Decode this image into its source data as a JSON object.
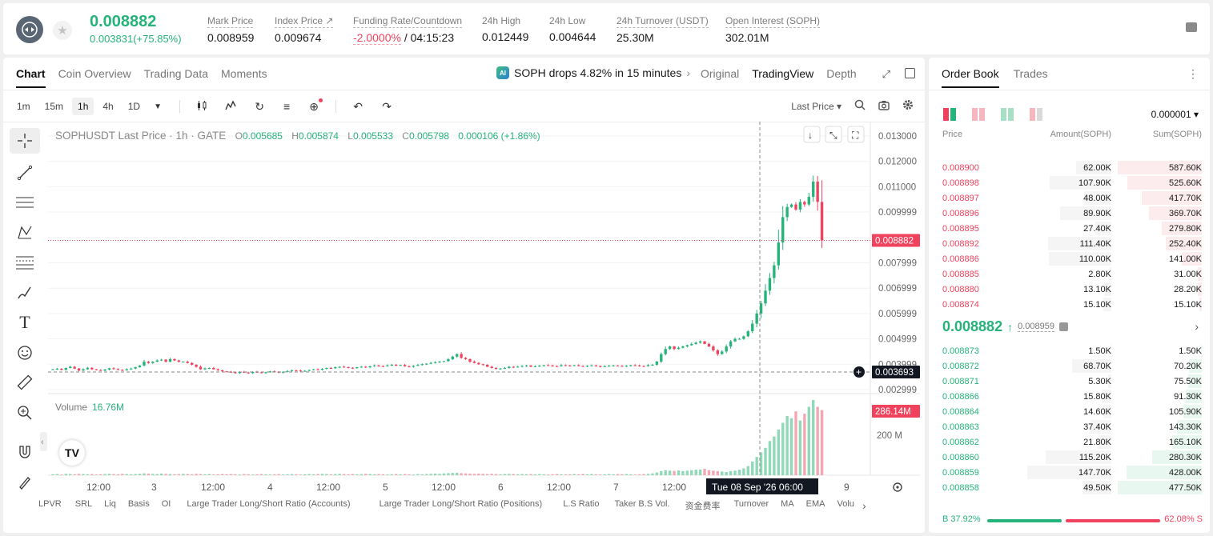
{
  "ticker": {
    "last_price": "0.008882",
    "change": "0.003831(+75.85%)",
    "stats": [
      {
        "label": "Mark Price",
        "value": "0.008959"
      },
      {
        "label": "Index Price ↗",
        "value": "0.009674"
      },
      {
        "label": "Funding Rate/Countdown",
        "value_neg": "-2.0000%",
        "value": " / 04:15:23"
      },
      {
        "label": "24h High",
        "value": "0.012449"
      },
      {
        "label": "24h Low",
        "value": "0.004644"
      },
      {
        "label": "24h Turnover (USDT)",
        "value": "25.30M"
      },
      {
        "label": "Open Interest (SOPH)",
        "value": "302.01M"
      }
    ]
  },
  "chart_tabs": [
    "Chart",
    "Coin Overview",
    "Trading Data",
    "Moments"
  ],
  "announcement": {
    "badge": "AI",
    "text": "SOPH drops 4.82% in 15 minutes",
    "chevron": "›"
  },
  "view_tabs": [
    "Original",
    "TradingView",
    "Depth"
  ],
  "timeframes": [
    "1m",
    "15m",
    "1h",
    "4h",
    "1D"
  ],
  "active_timeframe": "1h",
  "price_type": "Last Price ▾",
  "legend": {
    "title": "SOPHUSDT Last Price · 1h · GATE",
    "o_k": "O",
    "o": "0.005685",
    "h_k": "H",
    "h": "0.005874",
    "l_k": "L",
    "l": "0.005533",
    "c_k": "C",
    "c": "0.005798",
    "chg": "0.000106 (+1.86%)"
  },
  "volume_label": {
    "name": "Volume",
    "value": "16.76M"
  },
  "indicators": [
    "LPVR",
    "SRL",
    "Liq",
    "Basis",
    "OI",
    "Large Trader Long/Short Ratio (Accounts)",
    "Large Trader Long/Short Ratio (Positions)",
    "L.S Ratio",
    "Taker B.S Vol.",
    "资金费率",
    "Turnover",
    "MA",
    "EMA",
    "Volu"
  ],
  "chart_data": {
    "type": "candlestick",
    "symbol": "SOPHUSDT",
    "interval": "1h",
    "y_ticks": [
      "0.013000",
      "0.012000",
      "0.011000",
      "0.009999",
      "0.008999",
      "0.007999",
      "0.006999",
      "0.005999",
      "0.004999",
      "0.003999",
      "0.002999"
    ],
    "ylim": [
      0.002999,
      0.013
    ],
    "last_price_label": "0.008882",
    "crosshair_price_label": "0.003693",
    "crosshair_time_label": "Tue 08 Sep '26   06:00",
    "x_ticks": [
      "12:00",
      "3",
      "12:00",
      "4",
      "12:00",
      "5",
      "12:00",
      "6",
      "12:00",
      "7",
      "12:00",
      "8",
      "9"
    ],
    "volume_axis": [
      "286.14M",
      "200 M"
    ],
    "volume_last": 286.14,
    "volume_max": 330,
    "closes": [
      0.0038,
      0.00382,
      0.00378,
      0.00385,
      0.0039,
      0.00383,
      0.00375,
      0.0038,
      0.00386,
      0.0038,
      0.00377,
      0.00375,
      0.00379,
      0.00384,
      0.00381,
      0.00378,
      0.00376,
      0.0038,
      0.00383,
      0.00388,
      0.00395,
      0.0041,
      0.00405,
      0.0041,
      0.00415,
      0.00418,
      0.0041,
      0.0042,
      0.00415,
      0.0041,
      0.0041,
      0.00405,
      0.00398,
      0.0039,
      0.0038,
      0.00384,
      0.00385,
      0.0038,
      0.00376,
      0.00372,
      0.0037,
      0.00368,
      0.00365,
      0.0037,
      0.00367,
      0.00365,
      0.0037,
      0.00368,
      0.00366,
      0.00368,
      0.00372,
      0.0037,
      0.00367,
      0.0037,
      0.00373,
      0.00376,
      0.00375,
      0.00372,
      0.00374,
      0.00377,
      0.0038,
      0.00378,
      0.00382,
      0.00385,
      0.00384,
      0.00388,
      0.0039,
      0.00388,
      0.00386,
      0.00384,
      0.00388,
      0.0039,
      0.00388,
      0.00392,
      0.00395,
      0.00393,
      0.00392,
      0.00395,
      0.00398,
      0.00395,
      0.00397,
      0.00392,
      0.0039,
      0.00394,
      0.00397,
      0.004,
      0.00402,
      0.00405,
      0.00408,
      0.0041,
      0.00412,
      0.0042,
      0.0043,
      0.0044,
      0.00425,
      0.0042,
      0.0041,
      0.00405,
      0.004,
      0.00398,
      0.0039,
      0.00385,
      0.00382,
      0.00383,
      0.00385,
      0.0039,
      0.00388,
      0.0039,
      0.00393,
      0.00395,
      0.0039,
      0.00392,
      0.00394,
      0.00396,
      0.00395,
      0.00393,
      0.00392,
      0.00396,
      0.00395,
      0.00394,
      0.00396,
      0.00393,
      0.00392,
      0.00394,
      0.00395,
      0.00393,
      0.0039,
      0.00392,
      0.00394,
      0.00395,
      0.00393,
      0.00392,
      0.00394,
      0.00396,
      0.00395,
      0.00393,
      0.00392,
      0.00396,
      0.00398,
      0.0041,
      0.0044,
      0.0046,
      0.0047,
      0.0046,
      0.00465,
      0.0047,
      0.00475,
      0.0048,
      0.00485,
      0.0049,
      0.0048,
      0.0047,
      0.00455,
      0.0044,
      0.0045,
      0.0047,
      0.0049,
      0.005,
      0.005,
      0.0051,
      0.0053,
      0.0056,
      0.006,
      0.0064,
      0.0069,
      0.0074,
      0.0079,
      0.0088,
      0.0098,
      0.0102,
      0.0103,
      0.0101,
      0.0104,
      0.0103,
      0.0106,
      0.0112,
      0.0104,
      0.00888
    ],
    "volumes": [
      4,
      5,
      3,
      6,
      5,
      4,
      6,
      5,
      4,
      5,
      3,
      4,
      5,
      6,
      5,
      4,
      6,
      5,
      4,
      5,
      6,
      8,
      7,
      6,
      5,
      7,
      6,
      5,
      4,
      5,
      6,
      5,
      4,
      6,
      5,
      4,
      5,
      3,
      4,
      5,
      4,
      5,
      4,
      3,
      5,
      4,
      3,
      4,
      5,
      4,
      3,
      4,
      5,
      3,
      4,
      5,
      4,
      3,
      4,
      5,
      4,
      5,
      6,
      5,
      4,
      5,
      6,
      5,
      4,
      5,
      4,
      5,
      6,
      5,
      4,
      5,
      4,
      3,
      4,
      5,
      4,
      5,
      4,
      3,
      5,
      4,
      5,
      6,
      7,
      6,
      8,
      9,
      10,
      11,
      9,
      8,
      7,
      6,
      7,
      6,
      5,
      6,
      5,
      4,
      5,
      6,
      5,
      4,
      5,
      4,
      5,
      4,
      5,
      4,
      3,
      4,
      5,
      4,
      3,
      4,
      5,
      4,
      5,
      4,
      5,
      4,
      3,
      4,
      5,
      4,
      5,
      4,
      5,
      4,
      3,
      4,
      5,
      6,
      8,
      12,
      18,
      22,
      20,
      19,
      21,
      18,
      20,
      22,
      24,
      25,
      28,
      22,
      20,
      18,
      16,
      14,
      18,
      20,
      24,
      30,
      40,
      60,
      80,
      100,
      120,
      150,
      170,
      200,
      230,
      260,
      250,
      280,
      240,
      270,
      300,
      330,
      300,
      286
    ]
  },
  "orderbook": {
    "tabs": [
      "Order Book",
      "Trades"
    ],
    "precision": "0.000001 ▾",
    "headers": {
      "price": "Price",
      "amount": "Amount(SOPH)",
      "sum": "Sum(SOPH)"
    },
    "asks": [
      {
        "price": "0.008900",
        "amount": "62.00K",
        "sum": "587.60K",
        "amt_pct": 0.42,
        "sum_pct": 1.0
      },
      {
        "price": "0.008898",
        "amount": "107.90K",
        "sum": "525.60K",
        "amt_pct": 0.73,
        "sum_pct": 0.89
      },
      {
        "price": "0.008897",
        "amount": "48.00K",
        "sum": "417.70K",
        "amt_pct": 0.32,
        "sum_pct": 0.71
      },
      {
        "price": "0.008896",
        "amount": "89.90K",
        "sum": "369.70K",
        "amt_pct": 0.61,
        "sum_pct": 0.63
      },
      {
        "price": "0.008895",
        "amount": "27.40K",
        "sum": "279.80K",
        "amt_pct": 0.19,
        "sum_pct": 0.48
      },
      {
        "price": "0.008892",
        "amount": "111.40K",
        "sum": "252.40K",
        "amt_pct": 0.75,
        "sum_pct": 0.43
      },
      {
        "price": "0.008886",
        "amount": "110.00K",
        "sum": "141.00K",
        "amt_pct": 0.74,
        "sum_pct": 0.24
      },
      {
        "price": "0.008885",
        "amount": "2.80K",
        "sum": "31.00K",
        "amt_pct": 0.02,
        "sum_pct": 0.05
      },
      {
        "price": "0.008880",
        "amount": "13.10K",
        "sum": "28.20K",
        "amt_pct": 0.09,
        "sum_pct": 0.05
      },
      {
        "price": "0.008874",
        "amount": "15.10K",
        "sum": "15.10K",
        "amt_pct": 0.1,
        "sum_pct": 0.03
      }
    ],
    "mid_price": "0.008882",
    "mid_arrow": "↑",
    "mark_price": "0.008959",
    "bids": [
      {
        "price": "0.008873",
        "amount": "1.50K",
        "sum": "1.50K",
        "amt_pct": 0.01,
        "sum_pct": 0.01
      },
      {
        "price": "0.008872",
        "amount": "68.70K",
        "sum": "70.20K",
        "amt_pct": 0.47,
        "sum_pct": 0.15
      },
      {
        "price": "0.008871",
        "amount": "5.30K",
        "sum": "75.50K",
        "amt_pct": 0.04,
        "sum_pct": 0.16
      },
      {
        "price": "0.008866",
        "amount": "15.80K",
        "sum": "91.30K",
        "amt_pct": 0.11,
        "sum_pct": 0.19
      },
      {
        "price": "0.008864",
        "amount": "14.60K",
        "sum": "105.90K",
        "amt_pct": 0.1,
        "sum_pct": 0.22
      },
      {
        "price": "0.008863",
        "amount": "37.40K",
        "sum": "143.30K",
        "amt_pct": 0.25,
        "sum_pct": 0.3
      },
      {
        "price": "0.008862",
        "amount": "21.80K",
        "sum": "165.10K",
        "amt_pct": 0.15,
        "sum_pct": 0.35
      },
      {
        "price": "0.008860",
        "amount": "115.20K",
        "sum": "280.30K",
        "amt_pct": 0.78,
        "sum_pct": 0.59
      },
      {
        "price": "0.008859",
        "amount": "147.70K",
        "sum": "428.00K",
        "amt_pct": 1.0,
        "sum_pct": 0.9
      },
      {
        "price": "0.008858",
        "amount": "49.50K",
        "sum": "477.50K",
        "amt_pct": 0.34,
        "sum_pct": 1.0
      }
    ],
    "buy_ratio": "B 37.92%",
    "sell_ratio": "62.08% S"
  },
  "colors": {
    "up": "#25b37a",
    "down": "#f0425d",
    "up_bg": "#e8f7ef",
    "down_bg": "#fdecee"
  }
}
